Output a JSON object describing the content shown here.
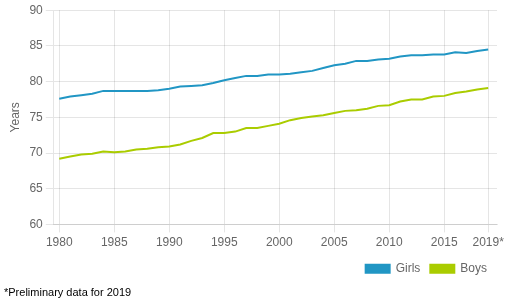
{
  "chart_data": {
    "type": "line",
    "ylabel": "Years",
    "annotations": [
      "*Preliminary data for 2019"
    ],
    "x": [
      1980,
      1981,
      1982,
      1983,
      1984,
      1985,
      1986,
      1987,
      1988,
      1989,
      1990,
      1991,
      1992,
      1993,
      1994,
      1995,
      1996,
      1997,
      1998,
      1999,
      2000,
      2001,
      2002,
      2003,
      2004,
      2005,
      2006,
      2007,
      2008,
      2009,
      2010,
      2011,
      2012,
      2013,
      2014,
      2015,
      2016,
      2017,
      2018,
      2019
    ],
    "series": [
      {
        "name": "Girls",
        "color": "#2196C4",
        "values": [
          77.6,
          77.9,
          78.1,
          78.3,
          78.7,
          78.7,
          78.7,
          78.7,
          78.7,
          78.8,
          79.0,
          79.3,
          79.4,
          79.5,
          79.8,
          80.2,
          80.5,
          80.8,
          80.8,
          81.0,
          81.0,
          81.1,
          81.3,
          81.5,
          81.9,
          82.3,
          82.5,
          82.9,
          82.9,
          83.1,
          83.2,
          83.5,
          83.7,
          83.7,
          83.8,
          83.8,
          84.1,
          84.0,
          84.3,
          84.5
        ]
      },
      {
        "name": "Boys",
        "color": "#AACC00",
        "values": [
          69.2,
          69.5,
          69.8,
          69.9,
          70.2,
          70.1,
          70.2,
          70.5,
          70.6,
          70.8,
          70.9,
          71.2,
          71.7,
          72.1,
          72.8,
          72.8,
          73.0,
          73.5,
          73.5,
          73.8,
          74.1,
          74.6,
          74.9,
          75.1,
          75.3,
          75.6,
          75.9,
          76.0,
          76.2,
          76.6,
          76.7,
          77.2,
          77.5,
          77.5,
          77.9,
          78.0,
          78.4,
          78.6,
          78.9,
          79.1
        ]
      }
    ],
    "xlim": [
      1979.5,
      2019.8
    ],
    "xticks": [
      1980,
      1985,
      1990,
      1995,
      2000,
      2005,
      2010,
      2015,
      {
        "value": 2019,
        "label": "2019*"
      }
    ],
    "ylim": [
      60,
      90
    ],
    "yticks": [
      60,
      65,
      70,
      75,
      80,
      85,
      90
    ],
    "grid": true,
    "legend": "lower right"
  }
}
